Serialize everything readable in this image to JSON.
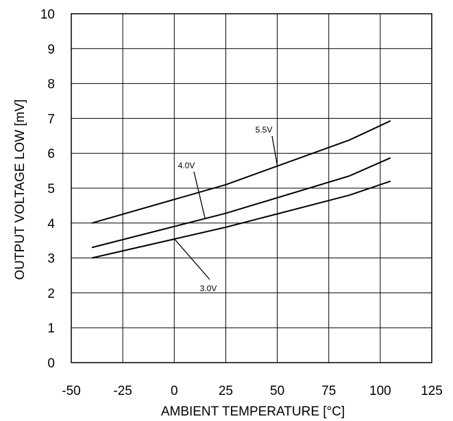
{
  "chart_data": {
    "type": "line",
    "title": "",
    "xlabel": "AMBIENT TEMPERATURE [°C]",
    "ylabel": "OUTPUT VOLTAGE LOW [mV]",
    "xlim": [
      -50,
      125
    ],
    "ylim": [
      0,
      10
    ],
    "xticks": [
      "-50",
      "-25",
      "0",
      "25",
      "50",
      "75",
      "100",
      "125"
    ],
    "yticks": [
      "0",
      "1",
      "2",
      "3",
      "4",
      "5",
      "6",
      "7",
      "8",
      "9",
      "10"
    ],
    "grid": true,
    "legend": "none",
    "series": [
      {
        "name": "5.5V",
        "x": [
          -40,
          25,
          85,
          105
        ],
        "y": [
          4.0,
          5.1,
          6.38,
          6.93
        ]
      },
      {
        "name": "4.0V",
        "x": [
          -40,
          25,
          85,
          105
        ],
        "y": [
          3.3,
          4.28,
          5.35,
          5.87
        ]
      },
      {
        "name": "3.0V",
        "x": [
          -40,
          25,
          85,
          105
        ],
        "y": [
          3.0,
          3.88,
          4.8,
          5.2
        ]
      }
    ],
    "annotations": [
      {
        "text": "5.5V",
        "series": 0,
        "x": 50,
        "y": 5.65
      },
      {
        "text": "4.0V",
        "series": 1,
        "x": 15,
        "y": 4.12
      },
      {
        "text": "3.0V",
        "series": 2,
        "x": 0,
        "y": 3.55
      }
    ]
  }
}
